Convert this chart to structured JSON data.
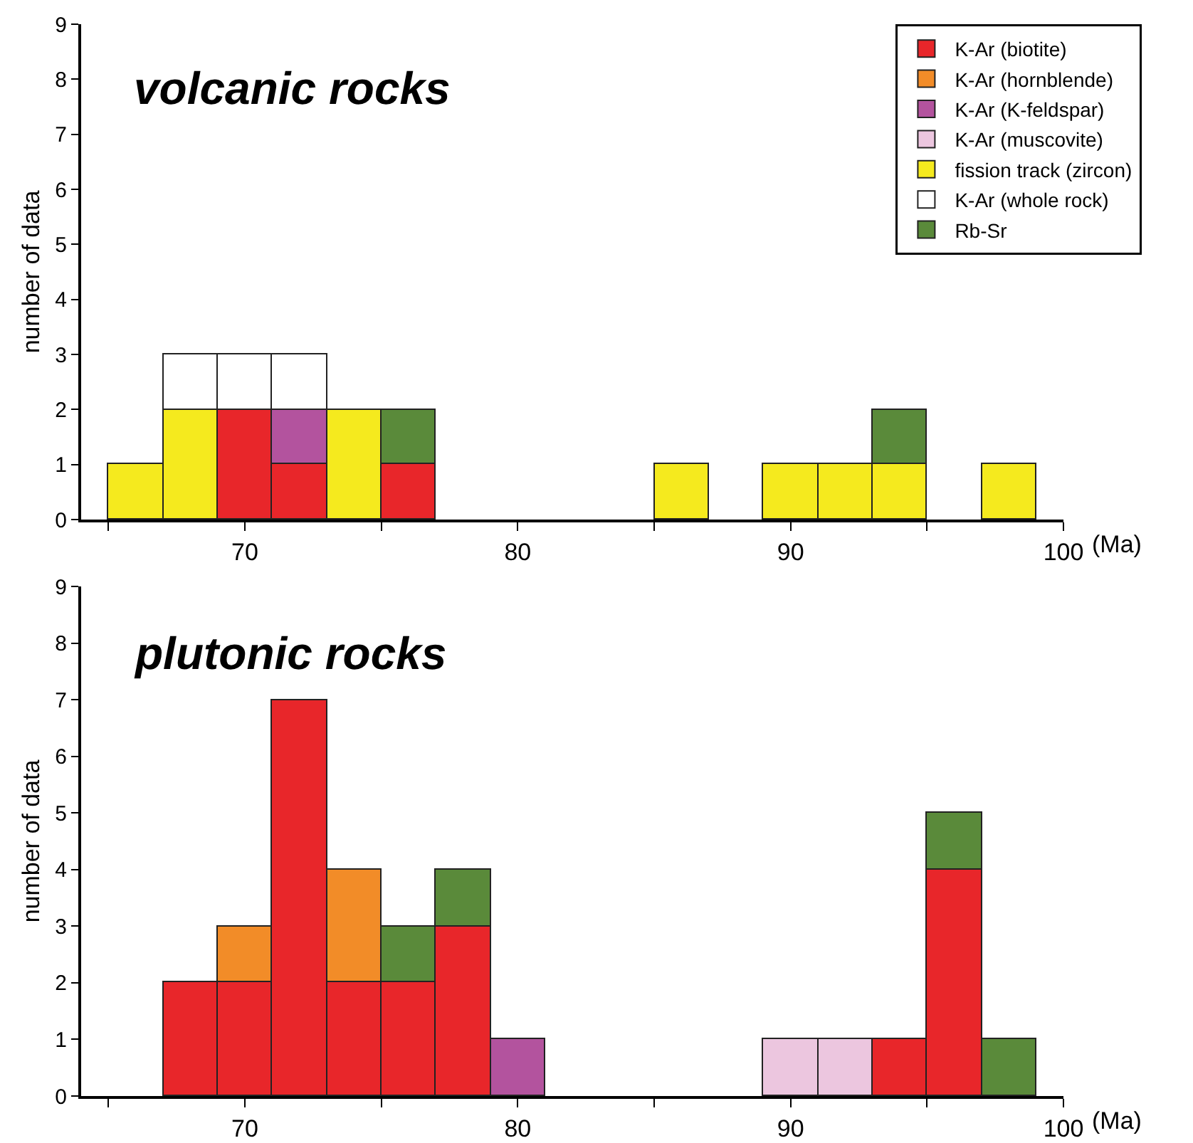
{
  "chart_data": [
    {
      "type": "bar",
      "title": "volcanic rocks",
      "xlabel": "(Ma)",
      "ylabel": "number of data",
      "stacked": true,
      "legend": "top right",
      "x": [
        66,
        68,
        70,
        72,
        74,
        76,
        78,
        80,
        82,
        84,
        86,
        88,
        90,
        92,
        94,
        96,
        98
      ],
      "xlim": [
        64,
        100
      ],
      "xticks": [
        {
          "value": 65,
          "label": null
        },
        70,
        {
          "value": 75,
          "label": null
        },
        80,
        {
          "value": 85,
          "label": null
        },
        90,
        {
          "value": 95,
          "label": null
        },
        100
      ],
      "ylim": [
        0,
        9
      ],
      "yticks": [
        0,
        1,
        2,
        3,
        4,
        5,
        6,
        7,
        8,
        9
      ],
      "series": [
        {
          "name": "K-Ar (biotite)",
          "color": "#e8262a",
          "values": [
            null,
            null,
            2,
            1,
            null,
            1,
            null,
            null,
            null,
            null,
            null,
            null,
            null,
            null,
            null,
            null,
            null
          ]
        },
        {
          "name": "K-Ar (hornblende)",
          "color": "#f28c28",
          "values": [
            null,
            null,
            null,
            null,
            null,
            null,
            null,
            null,
            null,
            null,
            null,
            null,
            null,
            null,
            null,
            null,
            null
          ]
        },
        {
          "name": "K-Ar (K-feldspar)",
          "color": "#b3539e",
          "values": [
            null,
            null,
            null,
            1,
            null,
            null,
            null,
            null,
            null,
            null,
            null,
            null,
            null,
            null,
            null,
            null,
            null
          ]
        },
        {
          "name": "K-Ar (muscovite)",
          "color": "#ecc6df",
          "values": [
            null,
            null,
            null,
            null,
            null,
            null,
            null,
            null,
            null,
            null,
            null,
            null,
            null,
            null,
            null,
            null,
            null
          ]
        },
        {
          "name": "fission track (zircon)",
          "color": "#f5ea1e",
          "values": [
            1,
            2,
            null,
            null,
            2,
            null,
            null,
            null,
            null,
            null,
            1,
            null,
            1,
            1,
            1,
            null,
            1
          ]
        },
        {
          "name": "K-Ar (whole rock)",
          "color": "#ffffff",
          "values": [
            null,
            1,
            1,
            1,
            null,
            null,
            null,
            null,
            null,
            null,
            null,
            null,
            null,
            null,
            null,
            null,
            null
          ]
        },
        {
          "name": "Rb-Sr",
          "color": "#5a8a3a",
          "values": [
            null,
            null,
            null,
            null,
            null,
            1,
            null,
            null,
            null,
            null,
            null,
            null,
            null,
            null,
            1,
            null,
            null
          ]
        }
      ]
    },
    {
      "type": "bar",
      "title": "plutonic rocks",
      "xlabel": "(Ma)",
      "ylabel": "number of data",
      "stacked": true,
      "x": [
        68,
        70,
        72,
        74,
        76,
        78,
        80,
        82,
        84,
        86,
        88,
        90,
        92,
        94,
        96,
        98
      ],
      "xlim": [
        64,
        100
      ],
      "xticks": [
        {
          "value": 65,
          "label": null
        },
        70,
        {
          "value": 75,
          "label": null
        },
        80,
        {
          "value": 85,
          "label": null
        },
        90,
        {
          "value": 95,
          "label": null
        },
        100
      ],
      "ylim": [
        0,
        9
      ],
      "yticks": [
        0,
        1,
        2,
        3,
        4,
        5,
        6,
        7,
        8,
        9
      ],
      "series": [
        {
          "color": "#e8262a",
          "values": [
            2,
            2,
            7,
            2,
            2,
            3,
            null,
            null,
            null,
            null,
            null,
            null,
            null,
            1,
            4,
            null
          ]
        },
        {
          "color": "#f28c28",
          "values": [
            null,
            1,
            null,
            2,
            null,
            null,
            null,
            null,
            null,
            null,
            null,
            null,
            null,
            null,
            null,
            null
          ]
        },
        {
          "color": "#b3539e",
          "values": [
            null,
            null,
            null,
            null,
            null,
            null,
            1,
            null,
            null,
            null,
            null,
            null,
            null,
            null,
            null,
            null
          ]
        },
        {
          "color": "#ecc6df",
          "values": [
            null,
            null,
            null,
            null,
            null,
            null,
            null,
            null,
            null,
            null,
            null,
            1,
            1,
            null,
            null,
            null
          ]
        },
        {
          "color": "#5a8a3a",
          "values": [
            null,
            null,
            null,
            null,
            1,
            1,
            null,
            null,
            null,
            null,
            null,
            null,
            null,
            null,
            1,
            1
          ]
        }
      ]
    }
  ]
}
